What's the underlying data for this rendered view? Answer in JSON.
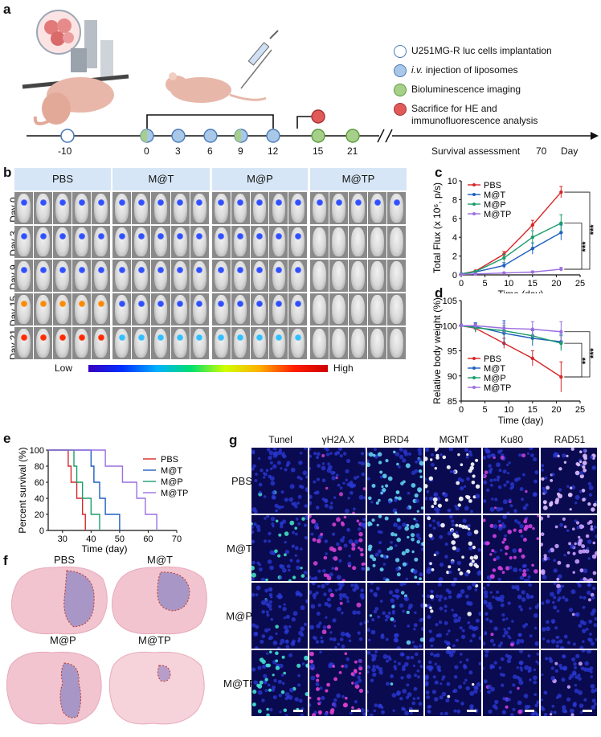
{
  "panels": {
    "a": "a",
    "b": "b",
    "c": "c",
    "d": "d",
    "e": "e",
    "f": "f",
    "g": "g"
  },
  "panel_a": {
    "legend": [
      {
        "key": "implant",
        "label": "U251MG-R luc cells implantation",
        "color": "#ffffff"
      },
      {
        "key": "iv",
        "label_em": "i.v.",
        "label": " injection of liposomes",
        "color": "#a9c8e8"
      },
      {
        "key": "bli",
        "label": "Bioluminescence imaging",
        "color": "#a6d08a"
      },
      {
        "key": "sac",
        "label": "Sacrifice for HE and immunofluorescence analysis",
        "color": "#e05a5a"
      }
    ],
    "timeline_days": [
      "-10",
      "0",
      "3",
      "6",
      "9",
      "12",
      "15",
      "21"
    ],
    "survival_label": "Survival assessment",
    "end_day": "70",
    "day_unit": "Day"
  },
  "panel_b": {
    "groups": [
      "PBS",
      "M@T",
      "M@P",
      "M@TP"
    ],
    "days": [
      "Day 0",
      "Day 3",
      "Day 9",
      "Day 15",
      "Day 21"
    ],
    "colorbar_low": "Low",
    "colorbar_high": "High"
  },
  "panel_f": {
    "labels": [
      "PBS",
      "M@T",
      "M@P",
      "M@TP"
    ]
  },
  "panel_g": {
    "columns": [
      "Tunel",
      "γH2A.X",
      "BRD4",
      "MGMT",
      "Ku80",
      "RAD51"
    ],
    "rows": [
      "PBS",
      "M@T",
      "M@P",
      "M@TP"
    ]
  },
  "colors": {
    "PBS": "#d62728",
    "M@T": "#1f5fbf",
    "M@P": "#1a9c6a",
    "M@TP": "#9b6fe0",
    "header_bg": "#d6e6f6"
  },
  "chart_data": [
    {
      "id": "c",
      "type": "line",
      "xlabel": "Time (day)",
      "ylabel": "Total Flux (x 10⁶, p/s)",
      "xlim": [
        0,
        25
      ],
      "ylim": [
        0,
        10
      ],
      "xticks": [
        0,
        5,
        10,
        15,
        20,
        25
      ],
      "yticks": [
        0,
        2,
        4,
        6,
        8,
        10
      ],
      "x": [
        0,
        3,
        9,
        15,
        21
      ],
      "series": [
        {
          "name": "PBS",
          "values": [
            0.1,
            0.4,
            2.2,
            5.3,
            8.8
          ],
          "err": [
            0.05,
            0.1,
            0.3,
            0.5,
            0.6
          ]
        },
        {
          "name": "M@T",
          "values": [
            0.1,
            0.3,
            1.0,
            2.8,
            4.5
          ],
          "err": [
            0.05,
            0.1,
            0.3,
            0.6,
            0.8
          ]
        },
        {
          "name": "M@P",
          "values": [
            0.1,
            0.35,
            1.8,
            4.0,
            5.5
          ],
          "err": [
            0.05,
            0.1,
            0.4,
            0.7,
            0.9
          ]
        },
        {
          "name": "M@TP",
          "values": [
            0.05,
            0.1,
            0.2,
            0.3,
            0.6
          ],
          "err": [
            0.02,
            0.05,
            0.1,
            0.1,
            0.2
          ]
        }
      ],
      "significance": [
        "***",
        "***"
      ]
    },
    {
      "id": "d",
      "type": "line",
      "xlabel": "Time (day)",
      "ylabel": "Relative body weight (%)",
      "xlim": [
        0,
        25
      ],
      "ylim": [
        85,
        105
      ],
      "xticks": [
        0,
        5,
        10,
        15,
        20,
        25
      ],
      "yticks": [
        85,
        90,
        95,
        100,
        105
      ],
      "x": [
        0,
        3,
        9,
        15,
        21
      ],
      "series": [
        {
          "name": "PBS",
          "values": [
            100,
            99.5,
            96.5,
            93.5,
            89.8
          ],
          "err": [
            0.3,
            0.8,
            1.0,
            1.5,
            3.0
          ]
        },
        {
          "name": "M@T",
          "values": [
            100,
            99.8,
            98.5,
            97.5,
            96.8
          ],
          "err": [
            0.3,
            0.8,
            2.5,
            1.5,
            1.5
          ]
        },
        {
          "name": "M@P",
          "values": [
            100,
            99.6,
            99.0,
            98.0,
            96.5
          ],
          "err": [
            0.3,
            0.8,
            1.0,
            1.2,
            1.5
          ]
        },
        {
          "name": "M@TP",
          "values": [
            100,
            100,
            99.5,
            99.3,
            98.8
          ],
          "err": [
            0.3,
            0.5,
            1.0,
            1.5,
            2.0
          ]
        }
      ],
      "significance": [
        "**",
        "***"
      ]
    },
    {
      "id": "e",
      "type": "line",
      "xlabel": "Time (day)",
      "ylabel": "Percent survival (%)",
      "xlim": [
        25,
        70
      ],
      "ylim": [
        0,
        100
      ],
      "xticks": [
        30,
        40,
        50,
        60,
        70
      ],
      "yticks": [
        0,
        20,
        40,
        60,
        80,
        100
      ],
      "series": [
        {
          "name": "PBS",
          "steps": [
            [
              25,
              100
            ],
            [
              32,
              100
            ],
            [
              32,
              80
            ],
            [
              33,
              80
            ],
            [
              33,
              60
            ],
            [
              35,
              60
            ],
            [
              35,
              40
            ],
            [
              37,
              40
            ],
            [
              37,
              20
            ],
            [
              38,
              20
            ],
            [
              38,
              0
            ]
          ]
        },
        {
          "name": "M@T",
          "steps": [
            [
              25,
              100
            ],
            [
              40,
              100
            ],
            [
              40,
              80
            ],
            [
              41,
              80
            ],
            [
              41,
              60
            ],
            [
              43,
              60
            ],
            [
              43,
              40
            ],
            [
              45,
              40
            ],
            [
              45,
              20
            ],
            [
              50,
              20
            ],
            [
              50,
              0
            ]
          ]
        },
        {
          "name": "M@P",
          "steps": [
            [
              25,
              100
            ],
            [
              34,
              100
            ],
            [
              34,
              80
            ],
            [
              35,
              80
            ],
            [
              35,
              60
            ],
            [
              37,
              60
            ],
            [
              37,
              40
            ],
            [
              40,
              40
            ],
            [
              40,
              20
            ],
            [
              43,
              20
            ],
            [
              43,
              0
            ]
          ]
        },
        {
          "name": "M@TP",
          "steps": [
            [
              25,
              100
            ],
            [
              45,
              100
            ],
            [
              45,
              80
            ],
            [
              51,
              80
            ],
            [
              51,
              60
            ],
            [
              56,
              60
            ],
            [
              56,
              40
            ],
            [
              59,
              40
            ],
            [
              59,
              20
            ],
            [
              63,
              20
            ],
            [
              63,
              0
            ]
          ]
        }
      ]
    }
  ]
}
